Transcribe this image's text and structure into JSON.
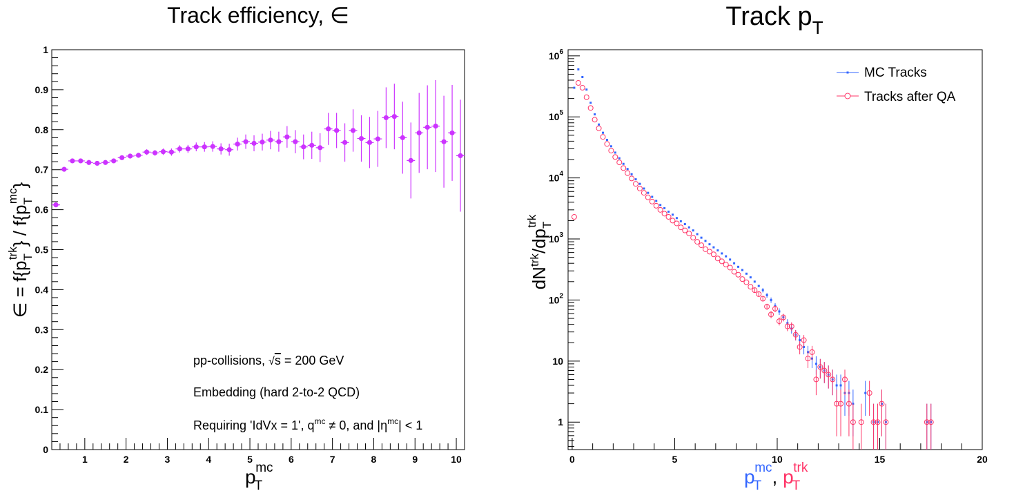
{
  "chart_data": [
    {
      "type": "scatter",
      "title": "Track efficiency, ∈",
      "xlabel": {
        "base": "p",
        "sub": "T",
        "sup": "mc"
      },
      "ylabel": {
        "parts": [
          "∈ = f{p",
          "T",
          "trk",
          "} / f{p",
          "T",
          "mc",
          "}"
        ]
      },
      "xlim": [
        0.2,
        10.2
      ],
      "ylim": [
        0,
        1
      ],
      "xticks": [
        "1",
        "2",
        "3",
        "4",
        "5",
        "6",
        "7",
        "8",
        "9",
        "10"
      ],
      "yticks": [
        "0",
        "0.1",
        "0.2",
        "0.3",
        "0.4",
        "0.5",
        "0.6",
        "0.7",
        "0.8",
        "0.9",
        "1"
      ],
      "grid": false,
      "series_color": "#cc33ff",
      "annotations": [
        {
          "text": "pp-collisions, ",
          "sqrt": "s",
          "rest": " = 200 GeV"
        },
        {
          "text": "Embedding (hard 2-to-2 QCD)"
        },
        {
          "text": "Requiring 'IdVx = 1', q",
          "sup1": "mc",
          "mid": " ≠ 0, and |η",
          "sup2": "mc",
          "end": "| < 1"
        }
      ],
      "points": [
        [
          0.3,
          0.612,
          0.005
        ],
        [
          0.5,
          0.701,
          0.004
        ],
        [
          0.7,
          0.722,
          0.004
        ],
        [
          0.9,
          0.722,
          0.004
        ],
        [
          1.1,
          0.718,
          0.004
        ],
        [
          1.3,
          0.716,
          0.004
        ],
        [
          1.5,
          0.718,
          0.005
        ],
        [
          1.7,
          0.722,
          0.005
        ],
        [
          1.9,
          0.73,
          0.005
        ],
        [
          2.1,
          0.734,
          0.006
        ],
        [
          2.3,
          0.736,
          0.006
        ],
        [
          2.5,
          0.744,
          0.007
        ],
        [
          2.7,
          0.742,
          0.007
        ],
        [
          2.9,
          0.745,
          0.008
        ],
        [
          3.1,
          0.744,
          0.009
        ],
        [
          3.3,
          0.752,
          0.009
        ],
        [
          3.5,
          0.752,
          0.01
        ],
        [
          3.7,
          0.757,
          0.011
        ],
        [
          3.9,
          0.757,
          0.012
        ],
        [
          4.1,
          0.758,
          0.013
        ],
        [
          4.3,
          0.752,
          0.014
        ],
        [
          4.5,
          0.75,
          0.015
        ],
        [
          4.7,
          0.764,
          0.016
        ],
        [
          4.9,
          0.77,
          0.018
        ],
        [
          5.1,
          0.766,
          0.02
        ],
        [
          5.3,
          0.769,
          0.021
        ],
        [
          5.5,
          0.774,
          0.023
        ],
        [
          5.7,
          0.77,
          0.025
        ],
        [
          5.9,
          0.782,
          0.027
        ],
        [
          6.1,
          0.77,
          0.029
        ],
        [
          6.3,
          0.757,
          0.031
        ],
        [
          6.5,
          0.761,
          0.034
        ],
        [
          6.7,
          0.755,
          0.036
        ],
        [
          6.9,
          0.802,
          0.04
        ],
        [
          7.1,
          0.798,
          0.044
        ],
        [
          7.3,
          0.768,
          0.048
        ],
        [
          7.5,
          0.798,
          0.053
        ],
        [
          7.7,
          0.778,
          0.058
        ],
        [
          7.9,
          0.768,
          0.064
        ],
        [
          8.1,
          0.777,
          0.07
        ],
        [
          8.3,
          0.83,
          0.076
        ],
        [
          8.5,
          0.833,
          0.082
        ],
        [
          8.7,
          0.78,
          0.09
        ],
        [
          8.9,
          0.723,
          0.095
        ],
        [
          9.1,
          0.792,
          0.1
        ],
        [
          9.3,
          0.806,
          0.105
        ],
        [
          9.5,
          0.809,
          0.115
        ],
        [
          9.7,
          0.77,
          0.115
        ],
        [
          9.9,
          0.792,
          0.12
        ],
        [
          10.1,
          0.735,
          0.14
        ]
      ]
    },
    {
      "type": "scatter",
      "title": {
        "base": "Track p",
        "sub": "T"
      },
      "xlabel": {
        "parts": [
          "p",
          "T",
          "mc",
          ", ",
          "p",
          "T",
          "trk"
        ]
      },
      "ylabel": {
        "parts": [
          "dN",
          "trk",
          "/dp",
          "T",
          "trk"
        ]
      },
      "xlim": [
        -0.2,
        20
      ],
      "ylim_log10": [
        -0.45,
        6.1
      ],
      "log_y": true,
      "xticks": [
        "0",
        "5",
        "10",
        "15",
        "20"
      ],
      "yticks": [
        {
          "base": "1",
          "exp": ""
        },
        {
          "base": "10",
          "exp": ""
        },
        {
          "base": "10",
          "exp": "2"
        },
        {
          "base": "10",
          "exp": "3"
        },
        {
          "base": "10",
          "exp": "4"
        },
        {
          "base": "10",
          "exp": "5"
        },
        {
          "base": "10",
          "exp": "6"
        }
      ],
      "grid": false,
      "legend": {
        "position": "top-right"
      },
      "colors": {
        "mc": "#3366ff",
        "qa": "#ff3366",
        "mc_label": "#3366ff",
        "trk_label": "#ff3366"
      },
      "series": [
        {
          "name": "MC Tracks",
          "marker": "square",
          "points": [
            [
              0.1,
              300000
            ],
            [
              0.3,
              600000
            ],
            [
              0.5,
              450000
            ],
            [
              0.7,
              280000
            ],
            [
              0.9,
              170000
            ],
            [
              1.1,
              110000
            ],
            [
              1.3,
              75000
            ],
            [
              1.5,
              55000
            ],
            [
              1.7,
              42000
            ],
            [
              1.9,
              33000
            ],
            [
              2.1,
              26000
            ],
            [
              2.3,
              21000
            ],
            [
              2.5,
              17000
            ],
            [
              2.7,
              14000
            ],
            [
              2.9,
              11500
            ],
            [
              3.1,
              9500
            ],
            [
              3.3,
              8000
            ],
            [
              3.5,
              6700
            ],
            [
              3.7,
              5700
            ],
            [
              3.9,
              4900
            ],
            [
              4.1,
              4200
            ],
            [
              4.3,
              3600
            ],
            [
              4.5,
              3200
            ],
            [
              4.7,
              2800
            ],
            [
              4.9,
              2500
            ],
            [
              5.1,
              2200
            ],
            [
              5.3,
              1950
            ],
            [
              5.5,
              1750
            ],
            [
              5.7,
              1550
            ],
            [
              5.9,
              1380
            ],
            [
              6.1,
              1200
            ],
            [
              6.3,
              1050
            ],
            [
              6.5,
              930
            ],
            [
              6.7,
              820
            ],
            [
              6.9,
              730
            ],
            [
              7.1,
              650
            ],
            [
              7.3,
              580
            ],
            [
              7.5,
              520
            ],
            [
              7.7,
              460
            ],
            [
              7.9,
              400
            ],
            [
              8.1,
              350
            ],
            [
              8.3,
              310
            ],
            [
              8.5,
              270
            ],
            [
              8.7,
              235
            ],
            [
              8.9,
              200
            ],
            [
              9.1,
              170
            ],
            [
              9.3,
              145
            ],
            [
              9.5,
              120
            ],
            [
              9.7,
              100
            ],
            [
              9.9,
              80
            ],
            [
              10.1,
              65
            ],
            [
              10.3,
              52
            ],
            [
              10.5,
              42
            ],
            [
              10.7,
              34
            ],
            [
              10.9,
              27
            ],
            [
              11.1,
              22
            ],
            [
              11.3,
              17
            ],
            [
              11.5,
              14
            ],
            [
              11.7,
              11
            ],
            [
              11.9,
              9
            ],
            [
              12.1,
              8
            ],
            [
              12.3,
              7
            ],
            [
              12.5,
              6
            ],
            [
              12.7,
              5
            ],
            [
              12.9,
              4
            ],
            [
              13.1,
              4
            ],
            [
              13.3,
              3
            ],
            [
              13.5,
              3
            ],
            [
              13.7,
              2
            ],
            [
              14.3,
              3
            ],
            [
              14.7,
              1
            ],
            [
              14.9,
              1
            ],
            [
              15.1,
              2
            ],
            [
              15.3,
              1
            ],
            [
              17.3,
              1
            ],
            [
              17.5,
              1
            ]
          ]
        },
        {
          "name": "Tracks after QA",
          "marker": "open-circle",
          "points": [
            [
              0.1,
              2300
            ],
            [
              0.3,
              360000
            ],
            [
              0.5,
              300000
            ],
            [
              0.7,
              210000
            ],
            [
              0.9,
              140000
            ],
            [
              1.1,
              90000
            ],
            [
              1.3,
              65000
            ],
            [
              1.5,
              47000
            ],
            [
              1.7,
              36000
            ],
            [
              1.9,
              28000
            ],
            [
              2.1,
              22000
            ],
            [
              2.3,
              18000
            ],
            [
              2.5,
              14500
            ],
            [
              2.7,
              12000
            ],
            [
              2.9,
              9800
            ],
            [
              3.1,
              8000
            ],
            [
              3.3,
              6700
            ],
            [
              3.5,
              5700
            ],
            [
              3.7,
              4800
            ],
            [
              3.9,
              4100
            ],
            [
              4.1,
              3500
            ],
            [
              4.3,
              3000
            ],
            [
              4.5,
              2600
            ],
            [
              4.7,
              2300
            ],
            [
              4.9,
              2000
            ],
            [
              5.1,
              1800
            ],
            [
              5.3,
              1550
            ],
            [
              5.5,
              1380
            ],
            [
              5.7,
              1230
            ],
            [
              5.9,
              1050
            ],
            [
              6.1,
              900
            ],
            [
              6.3,
              790
            ],
            [
              6.5,
              680
            ],
            [
              6.7,
              620
            ],
            [
              6.9,
              560
            ],
            [
              7.1,
              480
            ],
            [
              7.3,
              430
            ],
            [
              7.5,
              380
            ],
            [
              7.7,
              340
            ],
            [
              7.9,
              290
            ],
            [
              8.1,
              260
            ],
            [
              8.3,
              220
            ],
            [
              8.5,
              195
            ],
            [
              8.7,
              165
            ],
            [
              8.9,
              145
            ],
            [
              9.1,
              125
            ],
            [
              9.3,
              105
            ],
            [
              9.5,
              78
            ],
            [
              9.7,
              58
            ],
            [
              9.9,
              72
            ],
            [
              10.1,
              45
            ],
            [
              10.3,
              52
            ],
            [
              10.5,
              37
            ],
            [
              10.7,
              37
            ],
            [
              10.9,
              27
            ],
            [
              11.1,
              17
            ],
            [
              11.3,
              22
            ],
            [
              11.5,
              11
            ],
            [
              11.7,
              14
            ],
            [
              11.9,
              5
            ],
            [
              12.1,
              8
            ],
            [
              12.3,
              7
            ],
            [
              12.5,
              6
            ],
            [
              12.7,
              5
            ],
            [
              12.9,
              2
            ],
            [
              13.1,
              2
            ],
            [
              13.3,
              5
            ],
            [
              13.5,
              2
            ],
            [
              13.7,
              1
            ],
            [
              14.1,
              1
            ],
            [
              14.5,
              3
            ],
            [
              14.7,
              1
            ],
            [
              14.9,
              1
            ],
            [
              15.1,
              2
            ],
            [
              15.3,
              1
            ],
            [
              17.3,
              1
            ],
            [
              17.5,
              1
            ]
          ]
        }
      ]
    }
  ]
}
